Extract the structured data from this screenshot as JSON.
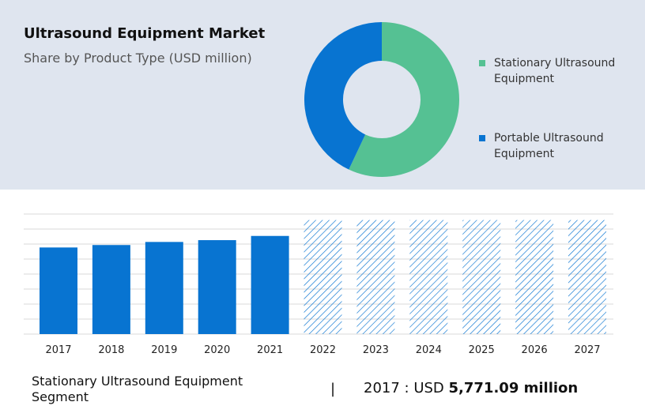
{
  "title": "Ultrasound Equipment Market",
  "subtitle": "Share by Product Type (USD million)",
  "colors": {
    "stationary": "#55c193",
    "portable": "#0874d1",
    "bar": "#0874d1",
    "hatch": "#0874d1",
    "grid": "#d9d9d9"
  },
  "chart_data": [
    {
      "type": "pie",
      "style": "donut",
      "slices": [
        {
          "label": "Stationary Ultrasound Equipment",
          "value": 57
        },
        {
          "label": "Portable Ultrasound Equipment",
          "value": 43
        }
      ],
      "legend": "right"
    },
    {
      "type": "bar",
      "categories": [
        "2017",
        "2018",
        "2019",
        "2020",
        "2021",
        "2022",
        "2023",
        "2024",
        "2025",
        "2026",
        "2027"
      ],
      "values": [
        5771.09,
        5935,
        6140,
        6260,
        6540,
        null,
        null,
        null,
        null,
        null,
        null
      ],
      "forecast_categories": [
        "2022",
        "2023",
        "2024",
        "2025",
        "2026",
        "2027"
      ],
      "ylim": [
        0,
        8000
      ],
      "grid": true,
      "y_tick_labels_visible": false
    }
  ],
  "footer": {
    "segment": "Stationary Ultrasound Equipment Segment",
    "separator": "|",
    "year_prefix": "2017 : USD",
    "value": "5,771.09 million"
  }
}
